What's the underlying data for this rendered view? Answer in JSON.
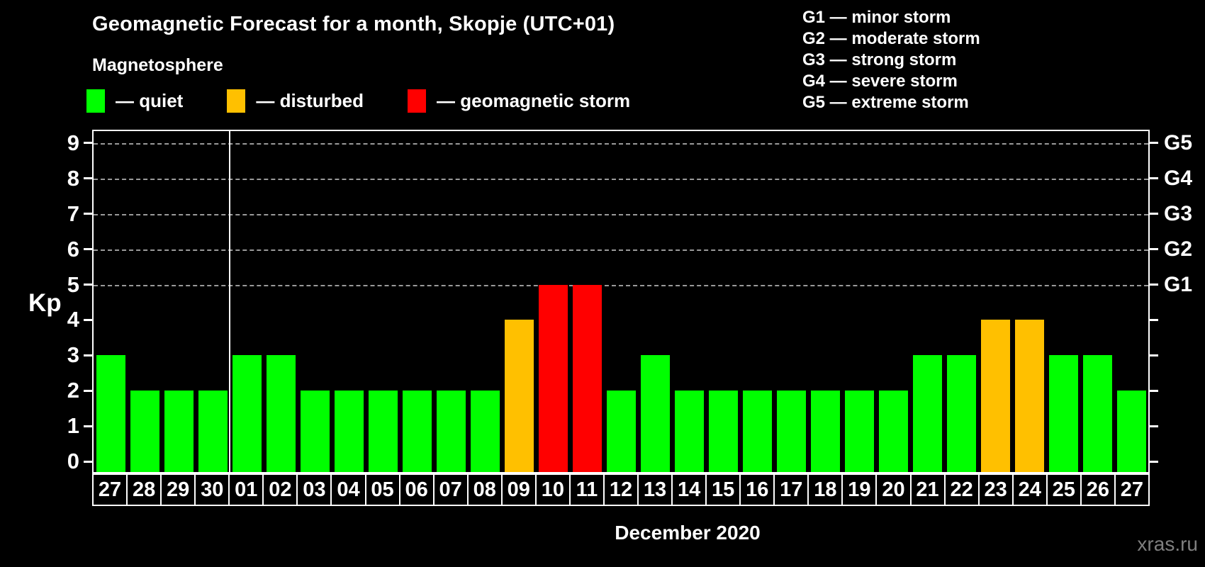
{
  "header": {
    "title": "Geomagnetic Forecast for a month, Skopje (UTC+01)",
    "subtitle": "Magnetosphere"
  },
  "legend": {
    "items": [
      {
        "key": "quiet",
        "label": "— quiet",
        "color": "#00ff00"
      },
      {
        "key": "disturbed",
        "label": "— disturbed",
        "color": "#ffc000"
      },
      {
        "key": "storm",
        "label": "— geomagnetic storm",
        "color": "#ff0000"
      }
    ]
  },
  "g_legend": {
    "lines": [
      "G1 — minor storm",
      "G2 — moderate storm",
      "G3 — strong storm",
      "G4 — severe storm",
      "G5 — extreme storm"
    ]
  },
  "axis": {
    "ylabel": "Kp",
    "xlabel": "December 2020",
    "yticks": [
      0,
      1,
      2,
      3,
      4,
      5,
      6,
      7,
      8,
      9
    ],
    "g_labels": [
      {
        "kp": 5,
        "label": "G1"
      },
      {
        "kp": 6,
        "label": "G2"
      },
      {
        "kp": 7,
        "label": "G3"
      },
      {
        "kp": 8,
        "label": "G4"
      },
      {
        "kp": 9,
        "label": "G5"
      }
    ]
  },
  "colors": {
    "quiet": "#00ff00",
    "disturbed": "#ffc000",
    "storm": "#ff0000",
    "grid": "#9a9a9a",
    "axis": "#ffffff",
    "watermark_text": "#7f7f7f",
    "background": "#000000"
  },
  "watermark": "xras.ru",
  "chart_data": {
    "type": "bar",
    "title": "Geomagnetic Forecast for a month, Skopje (UTC+01)",
    "xlabel": "December 2020",
    "ylabel": "Kp",
    "ylim": [
      0,
      9
    ],
    "grid": "horizontal dashed gridlines at Kp 5,6,7,8,9 (G1..G5 storm levels)",
    "legend_position": "top-left",
    "right_axis": "G1..G5 labels at Kp 5..9",
    "categories": [
      "27",
      "28",
      "29",
      "30",
      "01",
      "02",
      "03",
      "04",
      "05",
      "06",
      "07",
      "08",
      "09",
      "10",
      "11",
      "12",
      "13",
      "14",
      "15",
      "16",
      "17",
      "18",
      "19",
      "20",
      "21",
      "22",
      "23",
      "24",
      "25",
      "26",
      "27"
    ],
    "values": [
      3,
      2,
      2,
      2,
      3,
      3,
      2,
      2,
      2,
      2,
      2,
      2,
      4,
      5,
      5,
      2,
      3,
      2,
      2,
      2,
      2,
      2,
      2,
      2,
      3,
      3,
      4,
      4,
      3,
      3,
      2
    ],
    "statuses": [
      "quiet",
      "quiet",
      "quiet",
      "quiet",
      "quiet",
      "quiet",
      "quiet",
      "quiet",
      "quiet",
      "quiet",
      "quiet",
      "quiet",
      "disturbed",
      "storm",
      "storm",
      "quiet",
      "quiet",
      "quiet",
      "quiet",
      "quiet",
      "quiet",
      "quiet",
      "quiet",
      "quiet",
      "quiet",
      "quiet",
      "disturbed",
      "disturbed",
      "quiet",
      "quiet",
      "quiet"
    ],
    "december_starts_at_index": 4,
    "prev_month_trailing_days": [
      "27",
      "28",
      "29",
      "30"
    ]
  }
}
